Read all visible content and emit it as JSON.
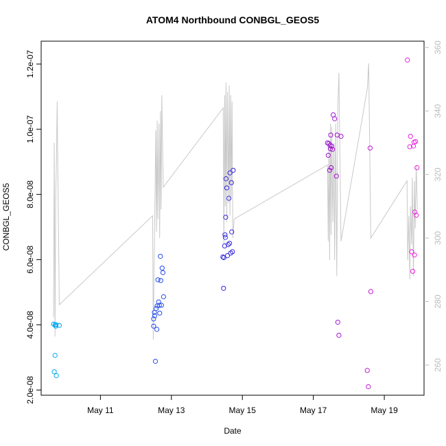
{
  "chart_data": {
    "type": "scatter",
    "title": "ATOM4 Northbound CONBGL_GEOS5",
    "xlabel": "Date",
    "ylabel": "CONBGL_GEOS5",
    "x_unit": "day of May",
    "xlim": [
      9.33,
      20.12
    ],
    "ylim": [
      1.84e-08,
      1.27e-07
    ],
    "y2lim": [
      250.5,
      362
    ],
    "x_ticks": [
      {
        "value": 11,
        "label": "May 11"
      },
      {
        "value": 13,
        "label": "May 13"
      },
      {
        "value": 15,
        "label": "May 15"
      },
      {
        "value": 17,
        "label": "May 17"
      },
      {
        "value": 19,
        "label": "May 19"
      }
    ],
    "y_ticks": [
      {
        "value": 2e-08,
        "label": "2.0e-08"
      },
      {
        "value": 4e-08,
        "label": "4.0e-08"
      },
      {
        "value": 6e-08,
        "label": "6.0e-08"
      },
      {
        "value": 8e-08,
        "label": "8.0e-08"
      },
      {
        "value": 1e-07,
        "label": "1.0e-07"
      },
      {
        "value": 1.2e-07,
        "label": "1.2e-07"
      }
    ],
    "y2_ticks": [
      {
        "value": 260,
        "label": "260"
      },
      {
        "value": 280,
        "label": "280"
      },
      {
        "value": 300,
        "label": "300"
      },
      {
        "value": 320,
        "label": "320"
      },
      {
        "value": 340,
        "label": "340"
      },
      {
        "value": 360,
        "label": "360"
      }
    ],
    "colors": {
      "line": "#c8c8c8",
      "axis": "#000000",
      "right_axis": "#bbbbbb",
      "point_gradient": [
        "#00aaee",
        "#2255ee",
        "#3322dd",
        "#9911cc",
        "#ee22dd"
      ]
    },
    "points": [
      [
        9.68,
        4.02e-08
      ],
      [
        9.7,
        2.56e-08
      ],
      [
        9.72,
        3.06e-08
      ],
      [
        9.72,
        4e-08
      ],
      [
        9.74,
        3.96e-08
      ],
      [
        9.75,
        4e-08
      ],
      [
        9.76,
        2.44e-08
      ],
      [
        9.84,
        3.98e-08
      ],
      [
        12.5,
        3.96e-08
      ],
      [
        12.5,
        4.18e-08
      ],
      [
        12.52,
        4.38e-08
      ],
      [
        12.53,
        4.28e-08
      ],
      [
        12.55,
        2.88e-08
      ],
      [
        12.57,
        4.5e-08
      ],
      [
        12.59,
        3.86e-08
      ],
      [
        12.6,
        4.58e-08
      ],
      [
        12.62,
        5.38e-08
      ],
      [
        12.64,
        4.7e-08
      ],
      [
        12.66,
        4.6e-08
      ],
      [
        12.67,
        4.36e-08
      ],
      [
        12.69,
        6.1e-08
      ],
      [
        12.7,
        5.36e-08
      ],
      [
        12.72,
        4.6e-08
      ],
      [
        12.74,
        5.74e-08
      ],
      [
        12.76,
        5.6e-08
      ],
      [
        12.78,
        4.86e-08
      ],
      [
        14.45,
        6.08e-08
      ],
      [
        14.47,
        5.12e-08
      ],
      [
        14.48,
        6.06e-08
      ],
      [
        14.5,
        6.42e-08
      ],
      [
        14.51,
        6.76e-08
      ],
      [
        14.52,
        6.68e-08
      ],
      [
        14.53,
        7.3e-08
      ],
      [
        14.54,
        8.48e-08
      ],
      [
        14.56,
        8.2e-08
      ],
      [
        14.58,
        6.12e-08
      ],
      [
        14.6,
        6.46e-08
      ],
      [
        14.62,
        7.88e-08
      ],
      [
        14.64,
        6.5e-08
      ],
      [
        14.65,
        8.66e-08
      ],
      [
        14.67,
        6.2e-08
      ],
      [
        14.69,
        8.36e-08
      ],
      [
        14.7,
        6.85e-08
      ],
      [
        14.72,
        6.24e-08
      ],
      [
        14.74,
        8.74e-08
      ],
      [
        17.4,
        9.58e-08
      ],
      [
        17.42,
        9.2e-08
      ],
      [
        17.44,
        9.56e-08
      ],
      [
        17.46,
        8.74e-08
      ],
      [
        17.47,
        9.5e-08
      ],
      [
        17.48,
        9.4e-08
      ],
      [
        17.49,
        9.82e-08
      ],
      [
        17.5,
        8.82e-08
      ],
      [
        17.52,
        9.48e-08
      ],
      [
        17.54,
        9.38e-08
      ],
      [
        17.56,
        1.044e-07
      ],
      [
        17.6,
        1.032e-07
      ],
      [
        17.65,
        8.56e-08
      ],
      [
        17.67,
        9.82e-08
      ],
      [
        17.69,
        4.08e-08
      ],
      [
        17.72,
        3.68e-08
      ],
      [
        17.78,
        9.78e-08
      ],
      [
        18.52,
        2.6e-08
      ],
      [
        18.55,
        2.1e-08
      ],
      [
        18.6,
        9.42e-08
      ],
      [
        18.62,
        5.02e-08
      ],
      [
        19.65,
        1.212e-07
      ],
      [
        19.72,
        9.46e-08
      ],
      [
        19.74,
        9.78e-08
      ],
      [
        19.77,
        6.24e-08
      ],
      [
        19.8,
        5.64e-08
      ],
      [
        19.82,
        9.48e-08
      ],
      [
        19.84,
        9.6e-08
      ],
      [
        19.85,
        6.14e-08
      ],
      [
        19.86,
        7.46e-08
      ],
      [
        19.88,
        9.62e-08
      ],
      [
        19.9,
        7.36e-08
      ],
      [
        19.92,
        8.82e-08
      ]
    ],
    "line_series": [
      [
        9.68,
        275
      ],
      [
        9.7,
        330
      ],
      [
        9.72,
        269
      ],
      [
        9.74,
        313
      ],
      [
        9.76,
        323
      ],
      [
        9.78,
        343
      ],
      [
        9.84,
        279
      ],
      [
        12.47,
        307
      ],
      [
        12.49,
        268
      ],
      [
        12.51,
        290
      ],
      [
        12.54,
        315
      ],
      [
        12.56,
        334
      ],
      [
        12.58,
        302
      ],
      [
        12.6,
        337
      ],
      [
        12.62,
        306
      ],
      [
        12.65,
        336
      ],
      [
        12.67,
        300
      ],
      [
        12.69,
        340
      ],
      [
        12.71,
        309
      ],
      [
        12.73,
        345
      ],
      [
        12.77,
        316
      ],
      [
        14.46,
        341
      ],
      [
        14.48,
        298
      ],
      [
        14.5,
        345
      ],
      [
        14.52,
        310
      ],
      [
        14.54,
        349
      ],
      [
        14.56,
        305
      ],
      [
        14.58,
        346
      ],
      [
        14.61,
        311
      ],
      [
        14.63,
        348
      ],
      [
        14.65,
        307
      ],
      [
        14.67,
        345
      ],
      [
        14.69,
        313
      ],
      [
        14.71,
        343
      ],
      [
        14.73,
        300
      ],
      [
        14.77,
        306
      ],
      [
        17.4,
        323
      ],
      [
        17.42,
        299
      ],
      [
        17.44,
        330
      ],
      [
        17.46,
        293
      ],
      [
        17.48,
        336
      ],
      [
        17.5,
        301
      ],
      [
        17.52,
        335
      ],
      [
        17.55,
        305
      ],
      [
        17.58,
        330
      ],
      [
        17.6,
        293
      ],
      [
        17.63,
        336
      ],
      [
        17.66,
        288
      ],
      [
        17.69,
        341
      ],
      [
        17.72,
        352
      ],
      [
        17.78,
        299
      ],
      [
        18.52,
        347
      ],
      [
        18.56,
        355
      ],
      [
        18.62,
        300
      ],
      [
        19.64,
        318
      ],
      [
        19.66,
        293
      ],
      [
        19.69,
        307
      ],
      [
        19.72,
        287
      ],
      [
        19.74,
        310
      ],
      [
        19.77,
        298
      ],
      [
        19.79,
        319
      ],
      [
        19.82,
        288
      ],
      [
        19.85,
        318
      ],
      [
        19.87,
        303
      ],
      [
        19.9,
        323
      ],
      [
        19.93,
        309
      ]
    ]
  }
}
